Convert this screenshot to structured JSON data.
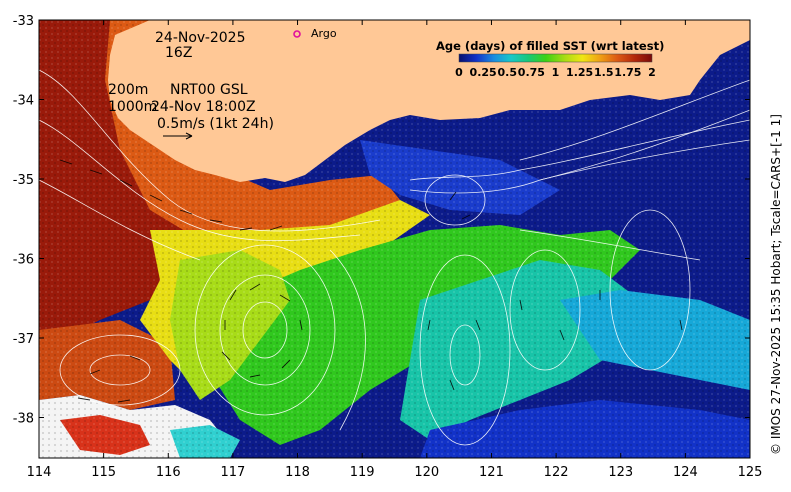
{
  "map": {
    "date_label": "24-Nov-2025",
    "hour_label": "16Z",
    "depth_200": "200m",
    "depth_1000": "1000m",
    "product_label": "NRT00 GSL",
    "velocity_time": "24-Nov 18:00Z",
    "scale_label": "0.5m/s (1kt 24h)",
    "argo_label": "Argo",
    "credit": "© IMOS 27-Nov-2025 15:35 Hobart; Tscale=CARS+[-1 1]"
  },
  "axes": {
    "x_ticks": [
      "114",
      "115",
      "116",
      "117",
      "118",
      "119",
      "120",
      "121",
      "122",
      "123",
      "124",
      "125"
    ],
    "y_ticks": [
      "-33",
      "-34",
      "-35",
      "-36",
      "-37",
      "-38"
    ]
  },
  "colorbar": {
    "title": "Age (days) of filled SST (wrt latest)",
    "ticks": [
      "0",
      "0.25",
      "0.5",
      "0.75",
      "1",
      "1.25",
      "1.5",
      "1.75",
      "2"
    ],
    "colors": [
      "#08106e",
      "#1232c8",
      "#1a8ce0",
      "#18c8c8",
      "#18c878",
      "#3cd214",
      "#aadc14",
      "#f0e614",
      "#f0a014",
      "#dc5a14",
      "#b4280a",
      "#7a0a0a"
    ]
  },
  "colors": {
    "land": "#ffc896",
    "ocean_deep": "#0c1b8a",
    "argo_marker": "#e0109c"
  }
}
